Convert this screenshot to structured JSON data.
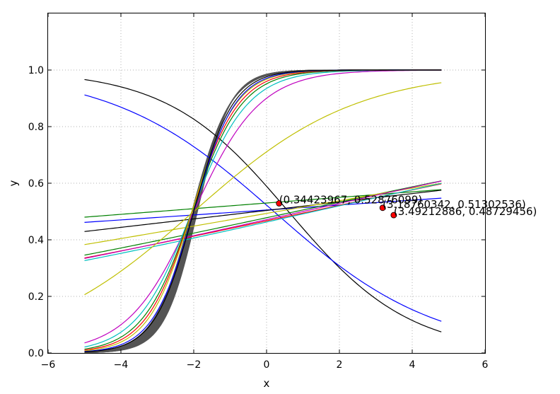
{
  "chart_data": {
    "type": "line",
    "xlabel": "x",
    "ylabel": "y",
    "xlim": [
      -6,
      6
    ],
    "ylim": [
      0,
      1.2
    ],
    "x_domain": [
      -5.0,
      4.8
    ],
    "x_ticks": [
      -6,
      -4,
      -2,
      0,
      2,
      4,
      6
    ],
    "x_tick_labels": [
      "−6",
      "−4",
      "−2",
      "0",
      "2",
      "4",
      "6"
    ],
    "y_ticks": [
      0.0,
      0.2,
      0.4,
      0.6,
      0.8,
      1.0
    ],
    "y_tick_labels": [
      "0.0",
      "0.2",
      "0.4",
      "0.6",
      "0.8",
      "1.0"
    ],
    "grid": true,
    "grid_style": "dotted",
    "dense_band": {
      "color": "#555555",
      "k_from": 1.9,
      "k_to": 2.2,
      "x0_from": -2.05,
      "x0_to": -1.9
    },
    "series": [
      {
        "color": "#000000",
        "k": -0.6,
        "x0": 0.6
      },
      {
        "color": "#0000ff",
        "k": -0.45,
        "x0": 0.2
      },
      {
        "color": "#008000",
        "k": 0.04,
        "x0": -3.0
      },
      {
        "color": "#0000ff",
        "k": 0.035,
        "x0": -0.6
      },
      {
        "color": "#000000",
        "k": 0.06,
        "x0": -0.25
      },
      {
        "color": "#008000",
        "k": 0.11,
        "x0": 0.8
      },
      {
        "color": "#bfbf00",
        "k": 0.09,
        "x0": 0.3
      },
      {
        "color": "#ff0000",
        "k": 0.11,
        "x0": 1.2
      },
      {
        "color": "#bf00bf",
        "k": 0.115,
        "x0": 1.0
      },
      {
        "color": "#00bfbf",
        "k": 0.115,
        "x0": 1.3
      },
      {
        "color": "#bfbf00",
        "k": 0.45,
        "x0": -2.0
      },
      {
        "color": "#bf00bf",
        "k": 1.1,
        "x0": -2.0
      },
      {
        "color": "#00bfbf",
        "k": 1.3,
        "x0": -2.05
      },
      {
        "color": "#008000",
        "k": 1.45,
        "x0": -2.05
      },
      {
        "color": "#ff0000",
        "k": 1.55,
        "x0": -2.05
      },
      {
        "color": "#bfbf00",
        "k": 1.65,
        "x0": -2.05
      },
      {
        "color": "#0000ff",
        "k": 1.75,
        "x0": -2.0
      },
      {
        "color": "#000000",
        "k": 1.85,
        "x0": -2.0
      }
    ],
    "points": [
      {
        "x": 0.34423967,
        "y": 0.52876099,
        "label": "(0.34423967, 0.52876099)",
        "color": "#ff0000"
      },
      {
        "x": 3.18760342,
        "y": 0.51302536,
        "label": "(3.18760342, 0.51302536)",
        "color": "#ff0000"
      },
      {
        "x": 3.49212886,
        "y": 0.48729456,
        "label": "(3.49212886, 0.48729456)",
        "color": "#ff0000"
      }
    ]
  }
}
